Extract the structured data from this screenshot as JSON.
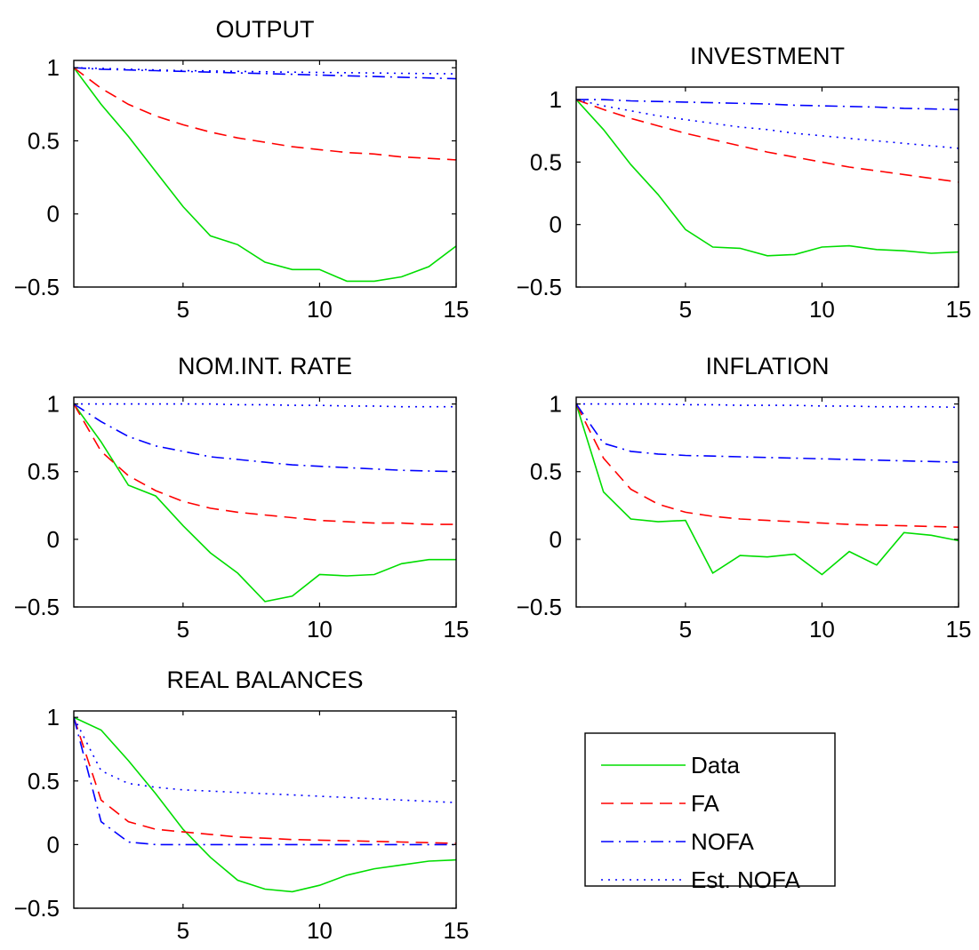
{
  "chart_data": [
    {
      "type": "line",
      "title": "OUTPUT",
      "xlim": [
        1,
        15
      ],
      "ylim": [
        -0.5,
        1.05
      ],
      "xticks": [
        5,
        10,
        15
      ],
      "yticks": [
        1,
        0.5,
        0,
        -0.5
      ],
      "ytick_labels": [
        "1",
        "0.5",
        "0",
        "−0.5"
      ],
      "x": [
        1,
        2,
        3,
        4,
        5,
        6,
        7,
        8,
        9,
        10,
        11,
        12,
        13,
        14,
        15
      ],
      "series": [
        {
          "name": "Data",
          "style": "solid",
          "color": "#00dd00",
          "values": [
            1.0,
            0.75,
            0.53,
            0.29,
            0.05,
            -0.15,
            -0.21,
            -0.33,
            -0.38,
            -0.38,
            -0.46,
            -0.46,
            -0.43,
            -0.36,
            -0.22
          ]
        },
        {
          "name": "FA",
          "style": "dashed",
          "color": "#ff0000",
          "values": [
            1.0,
            0.86,
            0.75,
            0.67,
            0.61,
            0.56,
            0.52,
            0.49,
            0.46,
            0.44,
            0.42,
            0.41,
            0.39,
            0.38,
            0.37
          ]
        },
        {
          "name": "NOFA",
          "style": "dashdot",
          "color": "#0000ff",
          "values": [
            1.0,
            0.99,
            0.985,
            0.98,
            0.975,
            0.97,
            0.965,
            0.96,
            0.955,
            0.95,
            0.945,
            0.94,
            0.935,
            0.93,
            0.925
          ]
        },
        {
          "name": "Est. NOFA",
          "style": "dotted",
          "color": "#0000ff",
          "values": [
            1.0,
            0.995,
            0.99,
            0.985,
            0.98,
            0.978,
            0.975,
            0.972,
            0.97,
            0.968,
            0.966,
            0.964,
            0.962,
            0.96,
            0.958
          ]
        }
      ]
    },
    {
      "type": "line",
      "title": "INVESTMENT",
      "xlim": [
        1,
        15
      ],
      "ylim": [
        -0.5,
        1.1
      ],
      "xticks": [
        5,
        10,
        15
      ],
      "yticks": [
        1,
        0.5,
        0,
        -0.5
      ],
      "ytick_labels": [
        "1",
        "0.5",
        "0",
        "−0.5"
      ],
      "x": [
        1,
        2,
        3,
        4,
        5,
        6,
        7,
        8,
        9,
        10,
        11,
        12,
        13,
        14,
        15
      ],
      "series": [
        {
          "name": "Data",
          "style": "solid",
          "color": "#00dd00",
          "values": [
            1.0,
            0.76,
            0.48,
            0.24,
            -0.04,
            -0.18,
            -0.19,
            -0.25,
            -0.24,
            -0.18,
            -0.17,
            -0.2,
            -0.21,
            -0.23,
            -0.22
          ]
        },
        {
          "name": "FA",
          "style": "dashed",
          "color": "#ff0000",
          "values": [
            1.0,
            0.92,
            0.85,
            0.79,
            0.73,
            0.68,
            0.63,
            0.58,
            0.54,
            0.5,
            0.46,
            0.43,
            0.4,
            0.37,
            0.34
          ]
        },
        {
          "name": "NOFA",
          "style": "dashdot",
          "color": "#0000ff",
          "values": [
            1.0,
            1.0,
            0.99,
            0.985,
            0.98,
            0.975,
            0.97,
            0.965,
            0.955,
            0.95,
            0.945,
            0.94,
            0.93,
            0.925,
            0.92
          ]
        },
        {
          "name": "Est. NOFA",
          "style": "dotted",
          "color": "#0000ff",
          "values": [
            1.0,
            0.95,
            0.91,
            0.87,
            0.84,
            0.81,
            0.78,
            0.76,
            0.73,
            0.71,
            0.69,
            0.67,
            0.65,
            0.63,
            0.61
          ]
        }
      ]
    },
    {
      "type": "line",
      "title": "NOM.INT. RATE",
      "xlim": [
        1,
        15
      ],
      "ylim": [
        -0.5,
        1.05
      ],
      "xticks": [
        5,
        10,
        15
      ],
      "yticks": [
        1,
        0.5,
        0,
        -0.5
      ],
      "ytick_labels": [
        "1",
        "0.5",
        "0",
        "−0.5"
      ],
      "x": [
        1,
        2,
        3,
        4,
        5,
        6,
        7,
        8,
        9,
        10,
        11,
        12,
        13,
        14,
        15
      ],
      "series": [
        {
          "name": "Data",
          "style": "solid",
          "color": "#00dd00",
          "values": [
            1.0,
            0.72,
            0.4,
            0.32,
            0.1,
            -0.1,
            -0.25,
            -0.46,
            -0.42,
            -0.26,
            -0.27,
            -0.26,
            -0.18,
            -0.15,
            -0.15
          ]
        },
        {
          "name": "FA",
          "style": "dashed",
          "color": "#ff0000",
          "values": [
            1.0,
            0.65,
            0.47,
            0.36,
            0.28,
            0.23,
            0.2,
            0.18,
            0.16,
            0.14,
            0.13,
            0.12,
            0.12,
            0.11,
            0.11
          ]
        },
        {
          "name": "NOFA",
          "style": "dashdot",
          "color": "#0000ff",
          "values": [
            1.0,
            0.87,
            0.76,
            0.69,
            0.65,
            0.61,
            0.59,
            0.57,
            0.55,
            0.54,
            0.53,
            0.52,
            0.51,
            0.505,
            0.5
          ]
        },
        {
          "name": "Est. NOFA",
          "style": "dotted",
          "color": "#0000ff",
          "values": [
            1.0,
            1.0,
            1.0,
            1.0,
            1.0,
            1.0,
            0.995,
            0.995,
            0.99,
            0.99,
            0.985,
            0.985,
            0.98,
            0.98,
            0.98
          ]
        }
      ]
    },
    {
      "type": "line",
      "title": "INFLATION",
      "xlim": [
        1,
        15
      ],
      "ylim": [
        -0.5,
        1.05
      ],
      "xticks": [
        5,
        10,
        15
      ],
      "yticks": [
        1,
        0.5,
        0,
        -0.5
      ],
      "ytick_labels": [
        "1",
        "0.5",
        "0",
        "−0.5"
      ],
      "x": [
        1,
        2,
        3,
        4,
        5,
        6,
        7,
        8,
        9,
        10,
        11,
        12,
        13,
        14,
        15
      ],
      "series": [
        {
          "name": "Data",
          "style": "solid",
          "color": "#00dd00",
          "values": [
            1.0,
            0.35,
            0.15,
            0.13,
            0.14,
            -0.25,
            -0.12,
            -0.13,
            -0.11,
            -0.26,
            -0.09,
            -0.19,
            0.05,
            0.03,
            -0.01
          ]
        },
        {
          "name": "FA",
          "style": "dashed",
          "color": "#ff0000",
          "values": [
            1.0,
            0.6,
            0.37,
            0.26,
            0.2,
            0.17,
            0.15,
            0.14,
            0.13,
            0.12,
            0.11,
            0.105,
            0.1,
            0.095,
            0.09
          ]
        },
        {
          "name": "NOFA",
          "style": "dashdot",
          "color": "#0000ff",
          "values": [
            1.0,
            0.71,
            0.65,
            0.63,
            0.62,
            0.615,
            0.61,
            0.605,
            0.6,
            0.595,
            0.59,
            0.585,
            0.58,
            0.575,
            0.57
          ]
        },
        {
          "name": "Est. NOFA",
          "style": "dotted",
          "color": "#0000ff",
          "values": [
            1.0,
            1.0,
            1.0,
            1.0,
            0.995,
            0.995,
            0.99,
            0.99,
            0.99,
            0.985,
            0.985,
            0.98,
            0.98,
            0.98,
            0.975
          ]
        }
      ]
    },
    {
      "type": "line",
      "title": "REAL BALANCES",
      "xlim": [
        1,
        15
      ],
      "ylim": [
        -0.5,
        1.05
      ],
      "xticks": [
        5,
        10,
        15
      ],
      "yticks": [
        1,
        0.5,
        0,
        -0.5
      ],
      "ytick_labels": [
        "1",
        "0.5",
        "0",
        "−0.5"
      ],
      "x": [
        1,
        2,
        3,
        4,
        5,
        6,
        7,
        8,
        9,
        10,
        11,
        12,
        13,
        14,
        15
      ],
      "series": [
        {
          "name": "Data",
          "style": "solid",
          "color": "#00dd00",
          "values": [
            1.0,
            0.9,
            0.66,
            0.4,
            0.12,
            -0.1,
            -0.28,
            -0.35,
            -0.37,
            -0.32,
            -0.24,
            -0.19,
            -0.16,
            -0.13,
            -0.12
          ]
        },
        {
          "name": "FA",
          "style": "dashed",
          "color": "#ff0000",
          "values": [
            1.0,
            0.35,
            0.18,
            0.12,
            0.1,
            0.08,
            0.06,
            0.05,
            0.04,
            0.035,
            0.03,
            0.025,
            0.02,
            0.015,
            0.01
          ]
        },
        {
          "name": "NOFA",
          "style": "dashdot",
          "color": "#0000ff",
          "values": [
            1.0,
            0.18,
            0.02,
            0.0,
            0.0,
            0.0,
            0.0,
            0.0,
            0.0,
            0.0,
            0.0,
            0.0,
            0.0,
            0.0,
            0.0
          ]
        },
        {
          "name": "Est. NOFA",
          "style": "dotted",
          "color": "#0000ff",
          "values": [
            1.0,
            0.58,
            0.48,
            0.45,
            0.43,
            0.42,
            0.41,
            0.4,
            0.39,
            0.38,
            0.37,
            0.36,
            0.35,
            0.34,
            0.33
          ]
        }
      ]
    }
  ],
  "legend": {
    "entries": [
      {
        "label": "Data",
        "style": "solid",
        "color": "#00dd00"
      },
      {
        "label": "FA",
        "style": "dashed",
        "color": "#ff0000"
      },
      {
        "label": "NOFA",
        "style": "dashdot",
        "color": "#0000ff"
      },
      {
        "label": "Est. NOFA",
        "style": "dotted",
        "color": "#0000ff"
      }
    ]
  }
}
